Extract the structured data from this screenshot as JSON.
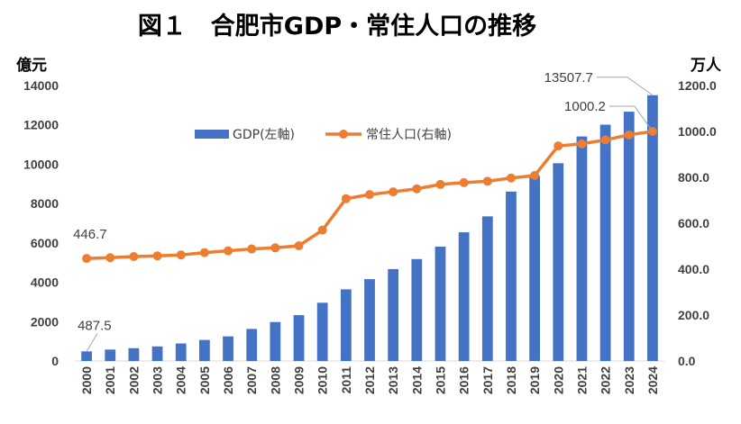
{
  "chart_data": {
    "type": "bar",
    "title": "図１　合肥市GDP・常住人口の推移",
    "left_unit": "億元",
    "right_unit": "万人",
    "categories": [
      "2000",
      "2001",
      "2002",
      "2003",
      "2004",
      "2005",
      "2006",
      "2007",
      "2008",
      "2009",
      "2010",
      "2011",
      "2012",
      "2013",
      "2014",
      "2015",
      "2016",
      "2017",
      "2018",
      "2019",
      "2020",
      "2021",
      "2022",
      "2023",
      "2024"
    ],
    "series": [
      {
        "name": "GDP(左軸)",
        "type": "bar",
        "axis": "left",
        "color": "#4472C4",
        "values": [
          487.5,
          580,
          650,
          740,
          890,
          1070,
          1250,
          1630,
          1980,
          2330,
          2960,
          3640,
          4160,
          4670,
          5180,
          5810,
          6540,
          7350,
          8610,
          9410,
          10050,
          11410,
          12010,
          12670,
          13507.7
        ]
      },
      {
        "name": "常住人口(右軸)",
        "type": "line",
        "axis": "right",
        "color": "#ED7D31",
        "values": [
          446.7,
          450,
          455,
          458,
          462,
          472,
          480,
          488,
          493,
          502,
          570,
          707,
          725,
          737,
          750,
          769,
          777,
          783,
          797,
          808,
          937,
          946,
          963,
          985,
          1000.2
        ]
      }
    ],
    "left_axis": {
      "min": 0,
      "max": 14000,
      "step": 2000,
      "tick_labels": [
        "0",
        "2000",
        "4000",
        "6000",
        "8000",
        "10000",
        "12000",
        "14000"
      ]
    },
    "right_axis": {
      "min": 0,
      "max": 1200,
      "step": 200,
      "tick_labels": [
        "0.0",
        "200.0",
        "400.0",
        "600.0",
        "800.0",
        "1000.0",
        "1200.0"
      ]
    },
    "annotations": [
      {
        "text": "487.5",
        "series": 0,
        "index": 0
      },
      {
        "text": "13507.7",
        "series": 0,
        "index": 24
      },
      {
        "text": "446.7",
        "series": 1,
        "index": 0
      },
      {
        "text": "1000.2",
        "series": 1,
        "index": 24
      }
    ],
    "legend_position": "top-center",
    "grid": false
  }
}
